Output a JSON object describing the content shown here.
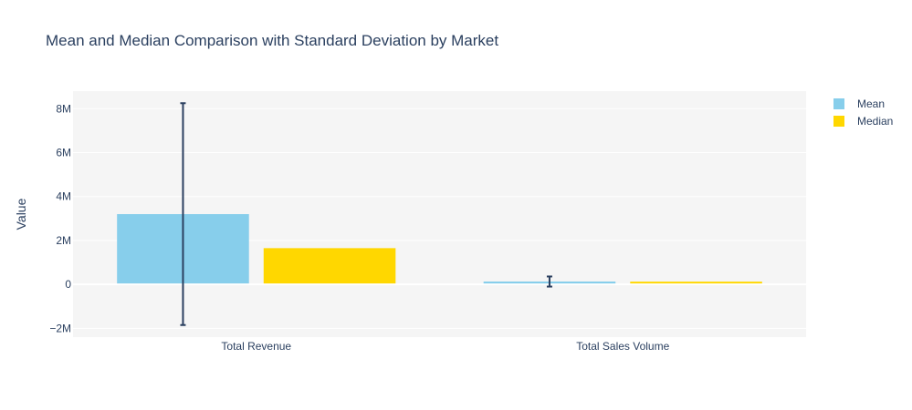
{
  "chart_data": {
    "type": "bar",
    "title": "Mean and Median Comparison with Standard Deviation by Market",
    "xlabel": "",
    "ylabel": "Value",
    "categories": [
      "Total Revenue",
      "Total Sales Volume"
    ],
    "series": [
      {
        "name": "Mean",
        "values": [
          3200000,
          130000
        ],
        "error": [
          5050000,
          230000
        ],
        "color": "#87ceeb"
      },
      {
        "name": "Median",
        "values": [
          1650000,
          70000
        ],
        "color": "#ffd700"
      }
    ],
    "ylim": [
      -2400000,
      8800000
    ],
    "yticks": [
      -2000000,
      0,
      2000000,
      4000000,
      6000000,
      8000000
    ],
    "ytick_labels": [
      "−2M",
      "0",
      "2M",
      "4M",
      "6M",
      "8M"
    ],
    "grid": true,
    "legend_position": "top-right",
    "plot_background": "#f5f5f5",
    "error_bar_color": "#2a3f5f"
  }
}
